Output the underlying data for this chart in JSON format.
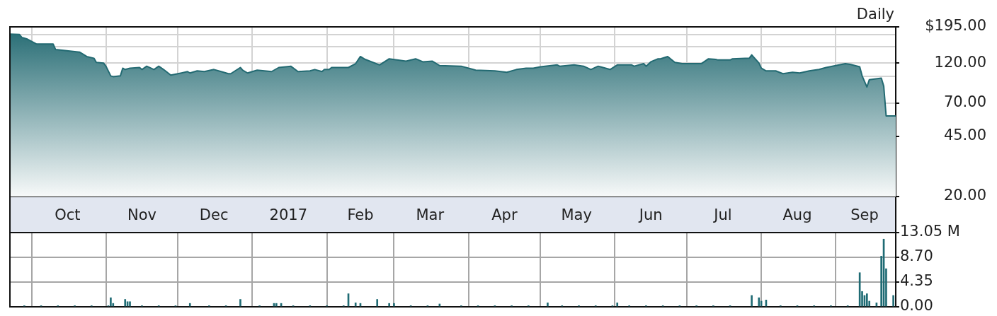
{
  "chart_data": [
    {
      "type": "area",
      "title": "Daily",
      "color": "#236a72",
      "x": [
        "2016-09-22",
        "2016-09-26",
        "2016-09-27",
        "2016-09-29",
        "2016-10-03",
        "2016-10-10",
        "2016-10-11",
        "2016-10-21",
        "2016-10-24",
        "2016-10-27",
        "2016-10-28",
        "2016-10-31",
        "2016-11-01",
        "2016-11-03",
        "2016-11-04",
        "2016-11-07",
        "2016-11-08",
        "2016-11-09",
        "2016-11-11",
        "2016-11-15",
        "2016-11-16",
        "2016-11-18",
        "2016-11-21",
        "2016-11-23",
        "2016-11-25",
        "2016-11-28",
        "2016-12-01",
        "2016-12-05",
        "2016-12-06",
        "2016-12-09",
        "2016-12-12",
        "2016-12-16",
        "2016-12-19",
        "2016-12-22",
        "2016-12-23",
        "2016-12-27",
        "2016-12-28",
        "2016-12-30",
        "2017-01-03",
        "2017-01-09",
        "2017-01-12",
        "2017-01-17",
        "2017-01-20",
        "2017-01-25",
        "2017-01-27",
        "2017-01-30",
        "2017-01-31",
        "2017-02-02",
        "2017-02-03",
        "2017-02-10",
        "2017-02-13",
        "2017-02-15",
        "2017-02-17",
        "2017-02-23",
        "2017-02-27",
        "2017-03-06",
        "2017-03-10",
        "2017-03-13",
        "2017-03-17",
        "2017-03-20",
        "2017-03-29",
        "2017-04-03",
        "2017-04-04",
        "2017-04-12",
        "2017-04-17",
        "2017-04-21",
        "2017-04-25",
        "2017-04-28",
        "2017-05-01",
        "2017-05-08",
        "2017-05-09",
        "2017-05-15",
        "2017-05-17",
        "2017-05-19",
        "2017-05-22",
        "2017-05-25",
        "2017-05-26",
        "2017-05-30",
        "2017-06-02",
        "2017-06-08",
        "2017-06-09",
        "2017-06-13",
        "2017-06-14",
        "2017-06-16",
        "2017-06-19",
        "2017-06-20",
        "2017-06-23",
        "2017-06-26",
        "2017-06-29",
        "2017-07-07",
        "2017-07-10",
        "2017-07-13",
        "2017-07-14",
        "2017-07-19",
        "2017-07-20",
        "2017-07-27",
        "2017-07-28",
        "2017-07-31",
        "2017-08-01",
        "2017-08-03",
        "2017-08-07",
        "2017-08-10",
        "2017-08-14",
        "2017-08-17",
        "2017-08-21",
        "2017-08-25",
        "2017-08-28",
        "2017-09-05",
        "2017-09-07",
        "2017-09-11",
        "2017-09-12",
        "2017-09-14",
        "2017-09-15",
        "2017-09-20",
        "2017-09-21",
        "2017-09-22",
        "2017-09-26"
      ],
      "values": [
        177,
        176,
        169,
        166,
        155,
        155,
        144,
        139,
        131,
        128,
        121,
        120,
        115,
        101,
        100,
        101,
        112,
        110,
        112,
        113,
        110,
        115,
        110,
        115,
        110,
        102,
        104,
        107,
        105,
        108,
        107,
        110,
        107,
        104,
        104,
        113,
        109,
        105,
        109,
        107,
        113,
        115,
        107,
        108,
        110,
        107,
        110,
        110,
        113,
        113,
        119,
        131,
        126,
        117,
        127,
        123,
        127,
        122,
        123,
        116,
        115,
        110,
        109,
        108,
        106,
        110,
        112,
        112,
        114,
        117,
        115,
        117,
        116,
        115,
        110,
        115,
        114,
        110,
        117,
        117,
        115,
        119,
        115,
        122,
        127,
        127,
        131,
        121,
        119,
        119,
        127,
        126,
        125,
        125,
        127,
        128,
        134,
        120,
        112,
        108,
        108,
        104,
        106,
        105,
        108,
        110,
        113,
        119,
        118,
        114,
        101,
        87,
        96,
        98,
        88,
        59,
        59
      ],
      "xlim": [
        "2016-09-22",
        "2017-09-26"
      ],
      "xticks": [
        {
          "value": "2016-10-01",
          "label": null
        },
        {
          "value": "2016-10-16",
          "label": "Oct"
        },
        {
          "value": "2016-11-01",
          "label": null
        },
        {
          "value": "2016-11-16",
          "label": "Nov"
        },
        {
          "value": "2016-12-01",
          "label": null
        },
        {
          "value": "2016-12-16",
          "label": "Dec"
        },
        {
          "value": "2017-01-01",
          "label": null
        },
        {
          "value": "2017-01-16",
          "label": "2017"
        },
        {
          "value": "2017-02-01",
          "label": null
        },
        {
          "value": "2017-02-15",
          "label": "Feb"
        },
        {
          "value": "2017-03-01",
          "label": null
        },
        {
          "value": "2017-03-16",
          "label": "Mar"
        },
        {
          "value": "2017-04-01",
          "label": null
        },
        {
          "value": "2017-04-16",
          "label": "Apr"
        },
        {
          "value": "2017-05-01",
          "label": null
        },
        {
          "value": "2017-05-16",
          "label": "May"
        },
        {
          "value": "2017-06-01",
          "label": null
        },
        {
          "value": "2017-06-16",
          "label": "Jun"
        },
        {
          "value": "2017-07-01",
          "label": null
        },
        {
          "value": "2017-07-16",
          "label": "Jul"
        },
        {
          "value": "2017-08-01",
          "label": null
        },
        {
          "value": "2017-08-16",
          "label": "Aug"
        },
        {
          "value": "2017-09-01",
          "label": null
        },
        {
          "value": "2017-09-13",
          "label": "Sep"
        }
      ],
      "ylim": [
        20,
        195
      ],
      "log": true,
      "yticks": [
        {
          "value": 195,
          "label": "$195.00"
        },
        {
          "value": 175,
          "label": null
        },
        {
          "value": 150,
          "label": null
        },
        {
          "value": 120,
          "label": "120.00"
        },
        {
          "value": 100,
          "label": null
        },
        {
          "value": 70,
          "label": "70.00"
        },
        {
          "value": 45,
          "label": "45.00"
        },
        {
          "value": 20,
          "label": "20.00"
        }
      ],
      "grid": true
    },
    {
      "type": "bar",
      "color": "#1f6b74",
      "x": [
        "2016-09-28",
        "2016-10-05",
        "2016-10-12",
        "2016-10-19",
        "2016-10-26",
        "2016-11-02",
        "2016-11-03",
        "2016-11-04",
        "2016-11-09",
        "2016-11-10",
        "2016-11-11",
        "2016-11-16",
        "2016-11-23",
        "2016-11-30",
        "2016-12-06",
        "2016-12-14",
        "2016-12-21",
        "2016-12-27",
        "2017-01-04",
        "2017-01-10",
        "2017-01-11",
        "2017-01-13",
        "2017-01-18",
        "2017-01-25",
        "2017-02-01",
        "2017-02-08",
        "2017-02-10",
        "2017-02-13",
        "2017-02-15",
        "2017-02-22",
        "2017-02-27",
        "2017-03-01",
        "2017-03-08",
        "2017-03-15",
        "2017-03-20",
        "2017-03-29",
        "2017-04-05",
        "2017-04-12",
        "2017-04-19",
        "2017-04-26",
        "2017-05-04",
        "2017-05-10",
        "2017-05-17",
        "2017-05-24",
        "2017-05-31",
        "2017-06-02",
        "2017-06-07",
        "2017-06-14",
        "2017-06-21",
        "2017-06-28",
        "2017-07-05",
        "2017-07-12",
        "2017-07-19",
        "2017-07-28",
        "2017-07-31",
        "2017-08-01",
        "2017-08-03",
        "2017-08-09",
        "2017-08-16",
        "2017-08-23",
        "2017-08-30",
        "2017-09-06",
        "2017-09-11",
        "2017-09-12",
        "2017-09-13",
        "2017-09-14",
        "2017-09-15",
        "2017-09-18",
        "2017-09-20",
        "2017-09-21",
        "2017-09-22",
        "2017-09-25"
      ],
      "values": [
        0.2,
        0.2,
        0.2,
        0.2,
        0.2,
        0.2,
        1.6,
        0.6,
        1.3,
        0.9,
        0.9,
        0.2,
        0.2,
        0.2,
        0.6,
        0.2,
        0.2,
        1.3,
        0.2,
        0.6,
        0.6,
        0.6,
        0.2,
        0.2,
        0.2,
        0.2,
        2.3,
        0.7,
        0.6,
        1.3,
        0.6,
        0.6,
        0.2,
        0.2,
        0.5,
        0.2,
        0.2,
        0.2,
        0.2,
        0.2,
        0.7,
        0.2,
        0.2,
        0.2,
        0.2,
        0.7,
        0.2,
        0.2,
        0.2,
        0.2,
        0.2,
        0.2,
        0.2,
        2.0,
        1.6,
        1.0,
        1.2,
        0.2,
        0.2,
        0.2,
        0.2,
        0.2,
        6.0,
        2.7,
        2.0,
        2.3,
        1.0,
        0.7,
        8.9,
        11.9,
        6.7,
        2.0
      ],
      "xlim": [
        "2016-09-22",
        "2017-09-26"
      ],
      "xticks": [
        {
          "value": "2016-10-01",
          "label": null
        },
        {
          "value": "2016-11-01",
          "label": null
        },
        {
          "value": "2016-12-01",
          "label": null
        },
        {
          "value": "2017-01-01",
          "label": null
        },
        {
          "value": "2017-02-01",
          "label": null
        },
        {
          "value": "2017-03-01",
          "label": null
        },
        {
          "value": "2017-04-01",
          "label": null
        },
        {
          "value": "2017-05-01",
          "label": null
        },
        {
          "value": "2017-06-01",
          "label": null
        },
        {
          "value": "2017-07-01",
          "label": null
        },
        {
          "value": "2017-08-01",
          "label": null
        },
        {
          "value": "2017-09-01",
          "label": null
        }
      ],
      "ylim": [
        0,
        13.05
      ],
      "yticks": [
        {
          "value": 13.05,
          "label": "13.05 M"
        },
        {
          "value": 8.7,
          "label": "8.70"
        },
        {
          "value": 4.35,
          "label": "4.35"
        },
        {
          "value": 0,
          "label": "0.00"
        }
      ],
      "grid": true,
      "tick_labels": "y"
    }
  ]
}
